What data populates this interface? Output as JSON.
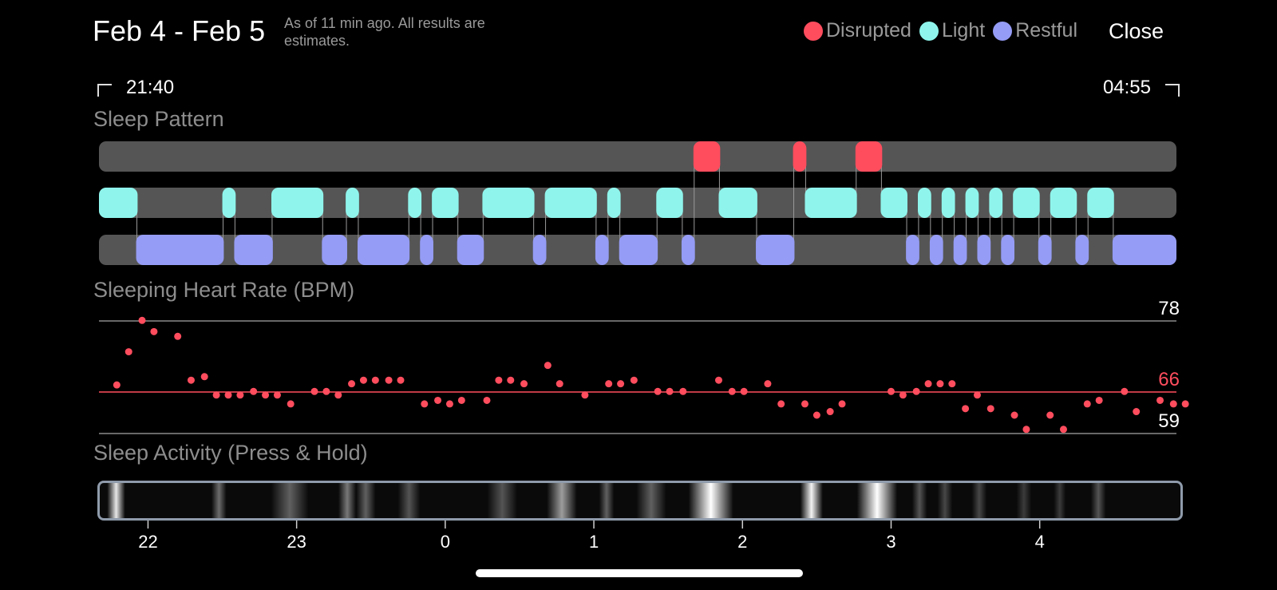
{
  "header": {
    "title": "Feb 4 - Feb 5",
    "subtitle": "As of 11 min ago. All results are estimates.",
    "close_label": "Close"
  },
  "legend": {
    "items": [
      {
        "label": "Disrupted",
        "color": "#ff4d5e"
      },
      {
        "label": "Light",
        "color": "#8ff5ec"
      },
      {
        "label": "Restful",
        "color": "#959cf5"
      }
    ]
  },
  "time_range": {
    "start": "21:40",
    "end": "04:55"
  },
  "sections": {
    "sleep_pattern": "Sleep Pattern",
    "heart_rate": "Sleeping Heart Rate (BPM)",
    "sleep_activity": "Sleep Activity (Press & Hold)"
  },
  "chart_data": [
    {
      "type": "timeline",
      "title": "Sleep Pattern",
      "x_unit": "hours since 21:40",
      "x_range": [
        0,
        7.25
      ],
      "lanes": [
        "Disrupted",
        "Light",
        "Restful"
      ],
      "colors": {
        "Disrupted": "#ff4d5e",
        "Light": "#8ff5ec",
        "Restful": "#959cf5",
        "track": "#555555"
      },
      "segments": [
        {
          "stage": "Light",
          "start": 0.0,
          "end": 0.26
        },
        {
          "stage": "Restful",
          "start": 0.25,
          "end": 0.84
        },
        {
          "stage": "Light",
          "start": 0.83,
          "end": 0.92
        },
        {
          "stage": "Restful",
          "start": 0.91,
          "end": 1.17
        },
        {
          "stage": "Light",
          "start": 1.16,
          "end": 1.51
        },
        {
          "stage": "Restful",
          "start": 1.5,
          "end": 1.67
        },
        {
          "stage": "Light",
          "start": 1.66,
          "end": 1.75
        },
        {
          "stage": "Restful",
          "start": 1.74,
          "end": 2.09
        },
        {
          "stage": "Light",
          "start": 2.08,
          "end": 2.17
        },
        {
          "stage": "Restful",
          "start": 2.16,
          "end": 2.25
        },
        {
          "stage": "Light",
          "start": 2.24,
          "end": 2.42
        },
        {
          "stage": "Restful",
          "start": 2.41,
          "end": 2.59
        },
        {
          "stage": "Light",
          "start": 2.58,
          "end": 2.93
        },
        {
          "stage": "Restful",
          "start": 2.92,
          "end": 3.01
        },
        {
          "stage": "Light",
          "start": 3.0,
          "end": 3.35
        },
        {
          "stage": "Restful",
          "start": 3.34,
          "end": 3.43
        },
        {
          "stage": "Light",
          "start": 3.42,
          "end": 3.51
        },
        {
          "stage": "Restful",
          "start": 3.5,
          "end": 3.76
        },
        {
          "stage": "Light",
          "start": 3.75,
          "end": 3.93
        },
        {
          "stage": "Restful",
          "start": 3.92,
          "end": 4.01
        },
        {
          "stage": "Disrupted",
          "start": 4.0,
          "end": 4.18
        },
        {
          "stage": "Light",
          "start": 4.17,
          "end": 4.43
        },
        {
          "stage": "Restful",
          "start": 4.42,
          "end": 4.68
        },
        {
          "stage": "Disrupted",
          "start": 4.67,
          "end": 4.76
        },
        {
          "stage": "Light",
          "start": 4.75,
          "end": 5.1
        },
        {
          "stage": "Disrupted",
          "start": 5.09,
          "end": 5.27
        },
        {
          "stage": "Light",
          "start": 5.26,
          "end": 5.44
        },
        {
          "stage": "Restful",
          "start": 5.43,
          "end": 5.52
        },
        {
          "stage": "Light",
          "start": 5.51,
          "end": 5.6
        },
        {
          "stage": "Restful",
          "start": 5.59,
          "end": 5.68
        },
        {
          "stage": "Light",
          "start": 5.67,
          "end": 5.76
        },
        {
          "stage": "Restful",
          "start": 5.75,
          "end": 5.84
        },
        {
          "stage": "Light",
          "start": 5.83,
          "end": 5.92
        },
        {
          "stage": "Restful",
          "start": 5.91,
          "end": 6.0
        },
        {
          "stage": "Light",
          "start": 5.99,
          "end": 6.08
        },
        {
          "stage": "Restful",
          "start": 6.07,
          "end": 6.16
        },
        {
          "stage": "Light",
          "start": 6.15,
          "end": 6.33
        },
        {
          "stage": "Restful",
          "start": 6.32,
          "end": 6.41
        },
        {
          "stage": "Light",
          "start": 6.4,
          "end": 6.58
        },
        {
          "stage": "Restful",
          "start": 6.57,
          "end": 6.66
        },
        {
          "stage": "Light",
          "start": 6.65,
          "end": 6.83
        },
        {
          "stage": "Restful",
          "start": 6.82,
          "end": 7.25
        }
      ]
    },
    {
      "type": "scatter",
      "title": "Sleeping Heart Rate (BPM)",
      "x_unit": "hours since 21:40",
      "x_range": [
        0,
        7.25
      ],
      "ylim": [
        59,
        78
      ],
      "reference_lines": [
        {
          "value": 78,
          "label": "78",
          "color": "#8a8a8a"
        },
        {
          "value": 66,
          "label": "66",
          "color": "#ff4d5e"
        },
        {
          "value": 59,
          "label": "59",
          "color": "#8a8a8a"
        }
      ],
      "point_color": "#ff4d5e",
      "points": [
        [
          0.12,
          67.2
        ],
        [
          0.2,
          72.8
        ],
        [
          0.29,
          78.1
        ],
        [
          0.37,
          76.2
        ],
        [
          0.53,
          75.4
        ],
        [
          0.62,
          68.0
        ],
        [
          0.71,
          68.6
        ],
        [
          0.79,
          65.5
        ],
        [
          0.87,
          65.5
        ],
        [
          0.95,
          65.5
        ],
        [
          1.04,
          66.1
        ],
        [
          1.12,
          65.5
        ],
        [
          1.2,
          65.5
        ],
        [
          1.29,
          64.0
        ],
        [
          1.45,
          66.1
        ],
        [
          1.53,
          66.1
        ],
        [
          1.61,
          65.5
        ],
        [
          1.7,
          67.4
        ],
        [
          1.78,
          68.0
        ],
        [
          1.86,
          68.0
        ],
        [
          1.95,
          68.0
        ],
        [
          2.03,
          68.0
        ],
        [
          2.19,
          64.0
        ],
        [
          2.28,
          64.6
        ],
        [
          2.36,
          64.0
        ],
        [
          2.44,
          64.6
        ],
        [
          2.61,
          64.6
        ],
        [
          2.69,
          68.0
        ],
        [
          2.77,
          68.0
        ],
        [
          2.86,
          67.4
        ],
        [
          3.02,
          70.5
        ],
        [
          3.1,
          67.4
        ],
        [
          3.27,
          65.5
        ],
        [
          3.43,
          67.4
        ],
        [
          3.51,
          67.4
        ],
        [
          3.6,
          68.0
        ],
        [
          3.76,
          66.1
        ],
        [
          3.84,
          66.1
        ],
        [
          3.93,
          66.1
        ],
        [
          4.17,
          68.0
        ],
        [
          4.26,
          66.1
        ],
        [
          4.34,
          66.1
        ],
        [
          4.5,
          67.4
        ],
        [
          4.59,
          64.0
        ],
        [
          4.75,
          64.0
        ],
        [
          4.83,
          62.1
        ],
        [
          4.92,
          62.7
        ],
        [
          5.0,
          64.0
        ],
        [
          5.33,
          66.1
        ],
        [
          5.41,
          65.5
        ],
        [
          5.5,
          66.1
        ],
        [
          5.58,
          67.4
        ],
        [
          5.66,
          67.4
        ],
        [
          5.74,
          67.4
        ],
        [
          5.83,
          63.2
        ],
        [
          5.91,
          65.5
        ],
        [
          6.0,
          63.2
        ],
        [
          6.16,
          62.1
        ],
        [
          6.24,
          59.7
        ],
        [
          6.4,
          62.1
        ],
        [
          6.49,
          59.7
        ],
        [
          6.65,
          64.0
        ],
        [
          6.73,
          64.6
        ],
        [
          6.9,
          66.1
        ],
        [
          6.98,
          62.7
        ],
        [
          7.14,
          64.6
        ],
        [
          7.23,
          64.0
        ],
        [
          7.31,
          64.0
        ]
      ]
    },
    {
      "type": "heatmap",
      "title": "Sleep Activity (Press & Hold)",
      "x_unit": "hours since 21:40",
      "x_range": [
        0,
        7.25
      ],
      "x_ticks": [
        {
          "label": "22",
          "value": 0.33
        },
        {
          "label": "23",
          "value": 1.33
        },
        {
          "label": "0",
          "value": 2.33
        },
        {
          "label": "1",
          "value": 3.33
        },
        {
          "label": "2",
          "value": 4.33
        },
        {
          "label": "3",
          "value": 5.33
        },
        {
          "label": "4",
          "value": 6.33
        }
      ],
      "bands": [
        {
          "start": 0.05,
          "end": 0.17,
          "intensity": 0.9
        },
        {
          "start": 0.75,
          "end": 0.85,
          "intensity": 0.4
        },
        {
          "start": 1.15,
          "end": 1.4,
          "intensity": 0.35
        },
        {
          "start": 1.6,
          "end": 1.72,
          "intensity": 0.45
        },
        {
          "start": 1.72,
          "end": 1.85,
          "intensity": 0.35
        },
        {
          "start": 2.0,
          "end": 2.15,
          "intensity": 0.3
        },
        {
          "start": 2.6,
          "end": 2.8,
          "intensity": 0.3
        },
        {
          "start": 3.0,
          "end": 3.2,
          "intensity": 0.6
        },
        {
          "start": 3.35,
          "end": 3.45,
          "intensity": 0.35
        },
        {
          "start": 3.6,
          "end": 3.8,
          "intensity": 0.35
        },
        {
          "start": 3.95,
          "end": 4.25,
          "intensity": 1.0
        },
        {
          "start": 4.7,
          "end": 4.85,
          "intensity": 0.95
        },
        {
          "start": 5.08,
          "end": 5.35,
          "intensity": 1.0
        },
        {
          "start": 5.45,
          "end": 5.55,
          "intensity": 0.3
        },
        {
          "start": 5.62,
          "end": 5.72,
          "intensity": 0.25
        },
        {
          "start": 5.85,
          "end": 5.95,
          "intensity": 0.25
        },
        {
          "start": 6.15,
          "end": 6.25,
          "intensity": 0.2
        },
        {
          "start": 6.4,
          "end": 6.48,
          "intensity": 0.2
        },
        {
          "start": 6.65,
          "end": 6.75,
          "intensity": 0.3
        }
      ]
    }
  ]
}
